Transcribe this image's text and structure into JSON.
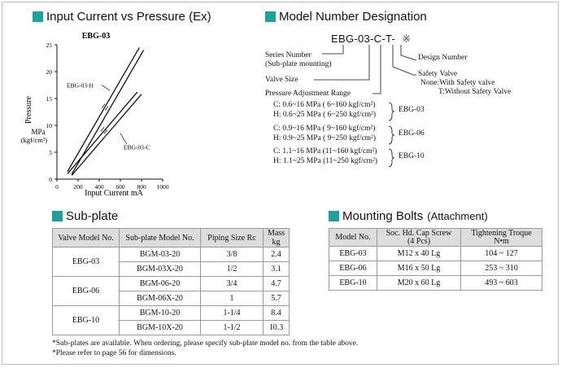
{
  "graph": {
    "section_title": "Input Current vs Pressure (Ex)",
    "section_title_suffix": "",
    "chart_title": "EBG-03",
    "ylabel": "Pressure",
    "yunit_line1": "MPa",
    "yunit_line2": "(kgf/cm²)",
    "xlabel": "Input Current  mA",
    "y_ticks": [
      "0",
      "5",
      "10",
      "15",
      "20",
      "25"
    ],
    "x_ticks": [
      "0",
      "200",
      "400",
      "600",
      "800",
      "1000"
    ]
  },
  "chart_data": {
    "type": "line",
    "title": "EBG-03",
    "xlabel": "Input Current  mA",
    "ylabel": "Pressure MPa (kgf/cm²)",
    "xlim": [
      0,
      1000
    ],
    "ylim": [
      0,
      25
    ],
    "grid": false,
    "series": [
      {
        "name": "EBG-03-H",
        "x": [
          100,
          780
        ],
        "y": [
          1.4,
          24.5
        ],
        "x2": [
          140,
          820
        ],
        "y2": [
          0.9,
          24.0
        ]
      },
      {
        "name": "EBG-03-C",
        "x": [
          100,
          760
        ],
        "y": [
          1.0,
          16.2
        ],
        "x2": [
          140,
          800
        ],
        "y2": [
          0.7,
          15.8
        ]
      }
    ]
  },
  "designation": {
    "section_title": "Model Number Designation",
    "model_code": "EBG-03-C-T-",
    "model_mark": "※",
    "series_number": "Series Number",
    "series_number_sub": "(Sub-plate mounting)",
    "valve_size": "Valve Size",
    "pressure_range": "Pressure Adjustment Range",
    "design_number": "Design Number",
    "safety_valve": "Safety Valve",
    "safety_none": "None:With Safety valve",
    "safety_t": "T:Without Safety Valve",
    "ranges": [
      {
        "c": "C: 0.6~16 MPa ( 6~160 kgf/cm²)",
        "h": "H: 0.6~25 MPa ( 6~250 kgf/cm²)",
        "model": "EBG-03"
      },
      {
        "c": "C: 0.9~16 MPa ( 9~160 kgf/cm²)",
        "h": "H: 0.9~25 MPa ( 9~250 kgf/cm²)",
        "model": "EBG-06"
      },
      {
        "c": "C: 1.1~16 MPa (11~160 kgf/cm²)",
        "h": "H: 1.1~25 MPa (11~250 kgf/cm²)",
        "model": "EBG-10"
      }
    ]
  },
  "subplate": {
    "section_title": "Sub-plate",
    "headers": [
      "Valve Model No.",
      "Sub-plate Model No.",
      "Piping Size Rc",
      "Mass kg"
    ],
    "groups": [
      {
        "valve": "EBG-03",
        "rows": [
          [
            "BGM-03-20",
            "3/8",
            "2.4"
          ],
          [
            "BGM-03X-20",
            "1/2",
            "3.1"
          ]
        ]
      },
      {
        "valve": "EBG-06",
        "rows": [
          [
            "BGM-06-20",
            "3/4",
            "4.7"
          ],
          [
            "BGM-06X-20",
            "1",
            "5.7"
          ]
        ]
      },
      {
        "valve": "EBG-10",
        "rows": [
          [
            "BGM-10-20",
            "1-1/4",
            "8.4"
          ],
          [
            "BGM-10X-20",
            "1-1/2",
            "10.3"
          ]
        ]
      }
    ]
  },
  "bolts": {
    "section_title": "Mounting Bolts",
    "section_title_suffix": "(Attachment)",
    "headers": [
      "Model No.",
      "Soc. Hd. Cap Screw",
      "(4 Pcs)",
      "Tightening Troque",
      "N•m"
    ],
    "rows": [
      [
        "EBG-03",
        "M12 x 40 Lg",
        "104 ~ 127"
      ],
      [
        "EBG-06",
        "M16 x 50 Lg",
        "253 ~ 310"
      ],
      [
        "EBG-10",
        "M20 x 60 Lg",
        "493 ~ 603"
      ]
    ]
  },
  "notes": [
    "*Sub-plates are available. When ordering, please specify sub-plate model no. from the table above.",
    "*Please refer to page 56 for dimensions."
  ]
}
